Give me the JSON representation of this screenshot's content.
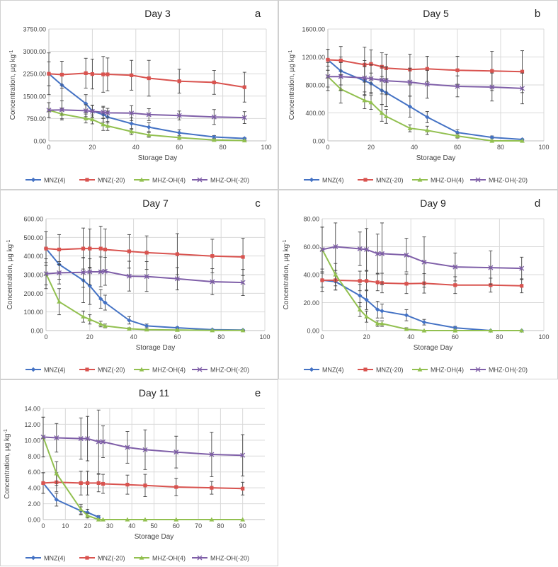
{
  "figure": {
    "series_names": [
      "MNZ(4)",
      "MNZ(-20)",
      "MHZ-OH(4)",
      "MHZ-OH(-20)"
    ],
    "series_colors": [
      "#4472C4",
      "#D9534F",
      "#92C050",
      "#7F5FA8"
    ],
    "series_markers": [
      "diamond",
      "square",
      "triangle",
      "x"
    ]
  },
  "chart_data": [
    {
      "type": "line",
      "panel_letter": "a",
      "title": "Day 3",
      "xlabel": "Storage Day",
      "ylabel": "Concentration, µg kg",
      "ylabel_sup": "-1",
      "xlim": [
        0,
        100
      ],
      "ylim": [
        0,
        3750
      ],
      "yticks": [
        0,
        750,
        1500,
        2250,
        3000,
        3750
      ],
      "ytick_labels": [
        "0.00",
        "750.00",
        "1500.00",
        "2250.00",
        "3000.00",
        "3750.00"
      ],
      "xticks": [
        0,
        20,
        40,
        60,
        80,
        100
      ],
      "xtick_labels": [
        "0",
        "20",
        "40",
        "60",
        "80",
        "100"
      ],
      "series": [
        {
          "name": "MNZ(4)",
          "x": [
            0,
            6,
            17,
            20,
            25,
            27,
            38,
            46,
            60,
            76,
            90
          ],
          "y": [
            2250,
            1870,
            1250,
            1000,
            880,
            800,
            580,
            460,
            270,
            130,
            80
          ],
          "err": [
            700,
            800,
            300,
            200,
            250,
            200,
            200,
            150,
            100,
            50,
            30
          ]
        },
        {
          "name": "MNZ(-20)",
          "x": [
            0,
            6,
            17,
            20,
            25,
            27,
            38,
            46,
            60,
            76,
            90
          ],
          "y": [
            2250,
            2220,
            2270,
            2240,
            2230,
            2230,
            2200,
            2100,
            2000,
            1960,
            1800
          ],
          "err": [
            400,
            450,
            500,
            500,
            600,
            550,
            500,
            600,
            400,
            400,
            500
          ]
        },
        {
          "name": "MHZ-OH(4)",
          "x": [
            0,
            6,
            17,
            20,
            25,
            27,
            38,
            46,
            60,
            76,
            90
          ],
          "y": [
            1030,
            900,
            750,
            720,
            550,
            500,
            310,
            200,
            110,
            30,
            10
          ],
          "err": [
            250,
            200,
            150,
            150,
            200,
            150,
            100,
            80,
            60,
            20,
            10
          ]
        },
        {
          "name": "MHZ-OH(-20)",
          "x": [
            0,
            6,
            17,
            20,
            25,
            27,
            38,
            46,
            60,
            76,
            90
          ],
          "y": [
            1030,
            1040,
            1010,
            990,
            960,
            940,
            930,
            880,
            850,
            800,
            780
          ],
          "err": [
            250,
            300,
            200,
            200,
            200,
            150,
            250,
            200,
            150,
            250,
            200
          ]
        }
      ]
    },
    {
      "type": "line",
      "panel_letter": "b",
      "title": "Day 5",
      "xlabel": "Storage Day",
      "ylabel": "Concentration, µg kg",
      "ylabel_sup": "-1",
      "xlim": [
        0,
        100
      ],
      "ylim": [
        0,
        1600
      ],
      "yticks": [
        0,
        400,
        800,
        1200,
        1600
      ],
      "ytick_labels": [
        "0.00",
        "400.00",
        "800.00",
        "1200.00",
        "1600.00"
      ],
      "xticks": [
        0,
        20,
        40,
        60,
        80,
        100
      ],
      "xtick_labels": [
        "0",
        "20",
        "40",
        "60",
        "80",
        "100"
      ],
      "series": [
        {
          "name": "MNZ(4)",
          "x": [
            0,
            6,
            17,
            20,
            25,
            27,
            38,
            46,
            60,
            76,
            90
          ],
          "y": [
            1160,
            1000,
            860,
            820,
            720,
            690,
            490,
            340,
            120,
            50,
            20
          ],
          "err": [
            150,
            200,
            200,
            150,
            200,
            200,
            150,
            80,
            40,
            20,
            10
          ]
        },
        {
          "name": "MNZ(-20)",
          "x": [
            0,
            6,
            17,
            20,
            25,
            27,
            38,
            46,
            60,
            76,
            90
          ],
          "y": [
            1160,
            1150,
            1090,
            1100,
            1060,
            1040,
            1020,
            1030,
            1010,
            1000,
            990
          ],
          "err": [
            150,
            200,
            250,
            200,
            200,
            200,
            220,
            180,
            200,
            280,
            300
          ]
        },
        {
          "name": "MHZ-OH(4)",
          "x": [
            0,
            6,
            17,
            20,
            25,
            27,
            38,
            46,
            60,
            76,
            90
          ],
          "y": [
            920,
            740,
            580,
            550,
            400,
            350,
            180,
            150,
            70,
            0,
            0
          ],
          "err": [
            150,
            200,
            120,
            100,
            120,
            100,
            50,
            60,
            30,
            0,
            0
          ]
        },
        {
          "name": "MHZ-OH(-20)",
          "x": [
            0,
            6,
            17,
            20,
            25,
            27,
            38,
            46,
            60,
            76,
            90
          ],
          "y": [
            920,
            920,
            900,
            890,
            870,
            860,
            840,
            810,
            780,
            770,
            750
          ],
          "err": [
            200,
            200,
            250,
            200,
            200,
            200,
            200,
            200,
            150,
            200,
            220
          ]
        }
      ]
    },
    {
      "type": "line",
      "panel_letter": "c",
      "title": "Day 7",
      "xlabel": "Storage Day",
      "ylabel": "Concentration, µg kg",
      "ylabel_sup": "-1",
      "xlim": [
        0,
        100
      ],
      "ylim": [
        0,
        600
      ],
      "yticks": [
        0,
        100,
        200,
        300,
        400,
        500,
        600
      ],
      "ytick_labels": [
        "0.00",
        "100.00",
        "200.00",
        "300.00",
        "400.00",
        "500.00",
        "600.00"
      ],
      "xticks": [
        0,
        20,
        40,
        60,
        80,
        100
      ],
      "xtick_labels": [
        "0",
        "20",
        "40",
        "60",
        "80",
        "100"
      ],
      "series": [
        {
          "name": "MNZ(4)",
          "x": [
            0,
            6,
            17,
            20,
            25,
            27,
            38,
            46,
            60,
            76,
            90
          ],
          "y": [
            440,
            355,
            270,
            240,
            170,
            150,
            55,
            25,
            15,
            5,
            3
          ],
          "err": [
            90,
            80,
            120,
            100,
            50,
            40,
            20,
            10,
            5,
            3,
            2
          ]
        },
        {
          "name": "MNZ(-20)",
          "x": [
            0,
            6,
            17,
            20,
            25,
            27,
            38,
            46,
            60,
            76,
            90
          ],
          "y": [
            440,
            435,
            440,
            440,
            440,
            435,
            425,
            418,
            410,
            400,
            395
          ],
          "err": [
            90,
            80,
            110,
            105,
            120,
            110,
            90,
            90,
            110,
            90,
            100
          ]
        },
        {
          "name": "MHZ-OH(4)",
          "x": [
            0,
            6,
            17,
            20,
            25,
            27,
            38,
            46,
            60,
            76,
            90
          ],
          "y": [
            305,
            155,
            75,
            60,
            35,
            25,
            10,
            5,
            3,
            1,
            1
          ],
          "err": [
            80,
            70,
            30,
            25,
            15,
            10,
            5,
            3,
            2,
            1,
            1
          ]
        },
        {
          "name": "MHZ-OH(-20)",
          "x": [
            0,
            6,
            17,
            20,
            25,
            27,
            38,
            46,
            60,
            76,
            90
          ],
          "y": [
            305,
            310,
            312,
            315,
            315,
            318,
            292,
            290,
            278,
            262,
            258
          ],
          "err": [
            60,
            60,
            80,
            70,
            80,
            75,
            80,
            80,
            60,
            70,
            70
          ]
        }
      ]
    },
    {
      "type": "line",
      "panel_letter": "d",
      "title": "Day 9",
      "xlabel": "Storage Day",
      "ylabel": "Concentration, µg kg",
      "ylabel_sup": "-1",
      "xlim": [
        0,
        100
      ],
      "ylim": [
        0,
        80
      ],
      "yticks": [
        0,
        20,
        40,
        60,
        80
      ],
      "ytick_labels": [
        "0.00",
        "20.00",
        "40.00",
        "60.00",
        "80.00"
      ],
      "xticks": [
        0,
        20,
        40,
        60,
        80,
        100
      ],
      "xtick_labels": [
        "0",
        "20",
        "40",
        "60",
        "80",
        "100"
      ],
      "series": [
        {
          "name": "MNZ(4)",
          "x": [
            0,
            6,
            17,
            20,
            25,
            27,
            38,
            46,
            60,
            76,
            90
          ],
          "y": [
            36,
            35,
            25,
            22,
            15,
            14,
            11,
            6,
            2,
            0,
            0
          ],
          "err": [
            5,
            6,
            8,
            7,
            6,
            5,
            4,
            2,
            1,
            0,
            0
          ]
        },
        {
          "name": "MNZ(-20)",
          "x": [
            0,
            6,
            17,
            20,
            25,
            27,
            38,
            46,
            60,
            76,
            90
          ],
          "y": [
            36,
            36,
            35.5,
            35.5,
            34.5,
            34,
            33.5,
            33.8,
            32.5,
            32.5,
            32
          ],
          "err": [
            8,
            7,
            7,
            7,
            6,
            7,
            7,
            7,
            6,
            5,
            5
          ]
        },
        {
          "name": "MHZ-OH(4)",
          "x": [
            0,
            6,
            17,
            20,
            25,
            27,
            38,
            46,
            60,
            76,
            90
          ],
          "y": [
            58,
            40,
            15,
            10,
            5,
            5,
            1,
            0,
            0,
            0,
            0
          ],
          "err": [
            16,
            8,
            5,
            4,
            2,
            2,
            1,
            0,
            0,
            0,
            0
          ]
        },
        {
          "name": "MHZ-OH(-20)",
          "x": [
            0,
            6,
            17,
            20,
            25,
            27,
            38,
            46,
            60,
            76,
            90
          ],
          "y": [
            58,
            60,
            58.5,
            58,
            55,
            55,
            54,
            49,
            45.5,
            45,
            44.5
          ],
          "err": [
            16,
            17,
            12,
            15,
            14,
            22,
            12,
            18,
            10,
            12,
            8
          ]
        }
      ]
    },
    {
      "type": "line",
      "panel_letter": "e",
      "title": "Day 11",
      "xlabel": "Storage Day",
      "ylabel": "Concentration, µg kg",
      "ylabel_sup": "-1",
      "xlim": [
        0,
        100
      ],
      "ylim": [
        0,
        14
      ],
      "yticks": [
        0,
        2,
        4,
        6,
        8,
        10,
        12,
        14
      ],
      "ytick_labels": [
        "0.00",
        "2.00",
        "4.00",
        "6.00",
        "8.00",
        "10.00",
        "12.00",
        "14.00"
      ],
      "xticks": [
        0,
        10,
        20,
        30,
        40,
        50,
        60,
        70,
        80,
        90
      ],
      "xtick_labels": [
        "0",
        "10",
        "20",
        "30",
        "40",
        "50",
        "60",
        "70",
        "80",
        "90"
      ],
      "series": [
        {
          "name": "MNZ(4)",
          "x": [
            0,
            6,
            17,
            20,
            25
          ],
          "y": [
            4.6,
            2.5,
            1.1,
            0.9,
            0.3
          ],
          "err": [
            1.3,
            0.8,
            0.5,
            0.4,
            0.2
          ]
        },
        {
          "name": "MNZ(-20)",
          "x": [
            0,
            6,
            17,
            20,
            25,
            27,
            38,
            46,
            60,
            76,
            90
          ],
          "y": [
            4.6,
            4.7,
            4.6,
            4.6,
            4.6,
            4.5,
            4.4,
            4.3,
            4.1,
            4.0,
            3.9
          ],
          "err": [
            1.3,
            1.2,
            1.5,
            1.5,
            1.1,
            1.2,
            1.2,
            1.4,
            1.1,
            0.8,
            0.8
          ]
        },
        {
          "name": "MHZ-OH(4)",
          "x": [
            0,
            6,
            17,
            20,
            25,
            27,
            38,
            46,
            60,
            76,
            90
          ],
          "y": [
            10.4,
            5.8,
            1.3,
            0.5,
            0,
            0,
            0,
            0,
            0,
            0,
            0
          ],
          "err": [
            2.5,
            1.5,
            0.6,
            0.3,
            0,
            0,
            0,
            0,
            0,
            0,
            0
          ]
        },
        {
          "name": "MHZ-OH(-20)",
          "x": [
            0,
            6,
            17,
            20,
            25,
            27,
            38,
            46,
            60,
            76,
            90
          ],
          "y": [
            10.4,
            10.3,
            10.2,
            10.2,
            9.8,
            9.8,
            9.1,
            8.8,
            8.5,
            8.2,
            8.1
          ],
          "err": [
            2.5,
            1.8,
            2.6,
            2.8,
            4,
            2,
            2,
            2.5,
            2,
            2.8,
            2.6
          ]
        }
      ]
    }
  ]
}
